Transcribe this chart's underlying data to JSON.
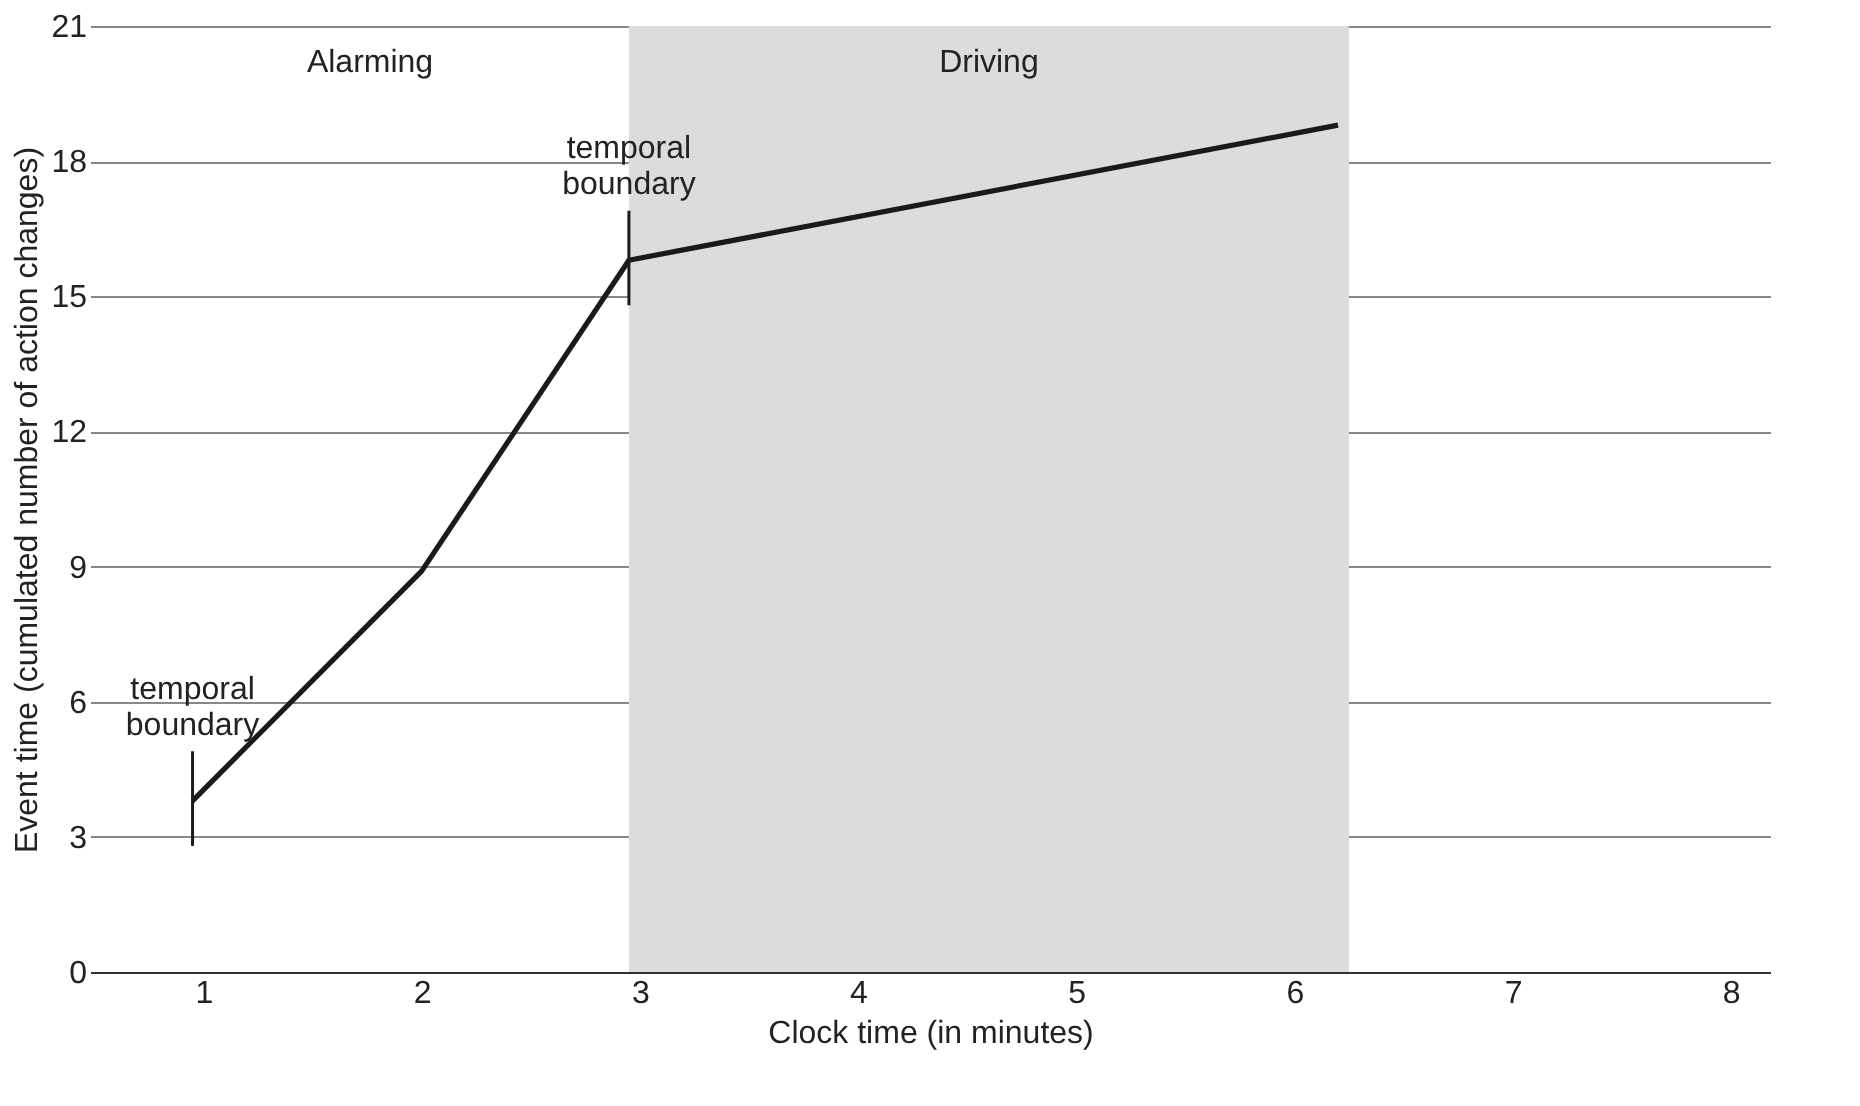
{
  "chart_data": {
    "type": "line",
    "xlabel": "Clock time (in minutes)",
    "ylabel": "Event time (cumulated number of action changes)",
    "x": [
      0.95,
      2.0,
      2.95,
      6.2
    ],
    "series": [
      {
        "color": "#1a1a1a",
        "values": [
          3.8,
          8.9,
          15.8,
          18.8
        ]
      }
    ],
    "xlim": [
      0.48,
      8.18
    ],
    "xticks": [
      1,
      2,
      3,
      4,
      5,
      6,
      7,
      8
    ],
    "ylim": [
      0,
      21
    ],
    "yticks": [
      0,
      3,
      6,
      9,
      12,
      15,
      18,
      21
    ],
    "grid": "y",
    "marker": "none",
    "line_style": "solid",
    "bands": [
      {
        "axis": "x",
        "from": 2.95,
        "to": 6.25,
        "label": "Driving",
        "color": "#dcdcdd"
      }
    ],
    "annotations": [
      "Alarming",
      {
        "text": "temporal boundary",
        "x": 0.95,
        "y": 3.8
      },
      {
        "text": "temporal boundary",
        "x": 2.95,
        "y": 15.8
      }
    ]
  }
}
